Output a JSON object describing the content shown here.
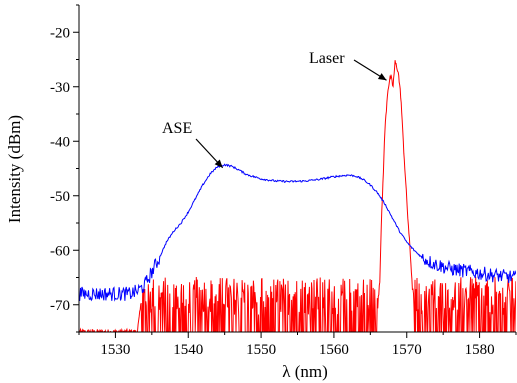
{
  "chart_data": {
    "type": "line",
    "title": "",
    "xlabel": "λ (nm)",
    "ylabel": "Intensity (dBm)",
    "xlim": [
      1525,
      1585
    ],
    "ylim": [
      -75,
      -15
    ],
    "xticks": [
      1530,
      1540,
      1550,
      1560,
      1570,
      1580
    ],
    "yticks": [
      -70,
      -60,
      -50,
      -40,
      -30,
      -20
    ],
    "grid": false,
    "legend": "none",
    "annotations": [
      {
        "text": "ASE",
        "points_to": [
          1545,
          -44.5
        ]
      },
      {
        "text": "Laser",
        "points_to": [
          1567.5,
          -29
        ]
      }
    ],
    "series": [
      {
        "name": "ASE",
        "color": "#0000ff",
        "x": [
          1525,
          1528,
          1530,
          1532,
          1533,
          1534,
          1535,
          1536,
          1537,
          1538,
          1539,
          1540,
          1541,
          1542,
          1543,
          1544,
          1545,
          1546,
          1547,
          1548,
          1550,
          1552,
          1554,
          1556,
          1558,
          1560,
          1562,
          1563,
          1564,
          1565,
          1566,
          1567,
          1568,
          1569,
          1570,
          1571,
          1572,
          1573,
          1574,
          1575,
          1576,
          1578,
          1580,
          1582,
          1585
        ],
        "y": [
          -68,
          -68,
          -68,
          -68,
          -67.5,
          -66.5,
          -64,
          -61.5,
          -58.5,
          -56.5,
          -55,
          -53,
          -50.5,
          -48,
          -46,
          -44.7,
          -44.3,
          -44.6,
          -45.3,
          -46.1,
          -46.9,
          -47.3,
          -47.4,
          -47.3,
          -47,
          -46.5,
          -46.2,
          -46.4,
          -47,
          -48,
          -49.5,
          -51.5,
          -54,
          -56.5,
          -58.5,
          -60,
          -61.2,
          -62,
          -62.6,
          -63,
          -63.4,
          -63.8,
          -64.2,
          -64.6,
          -65
        ]
      },
      {
        "name": "Laser",
        "color": "#ff0000",
        "x": [
          1525,
          1533,
          1533.5,
          1566,
          1566.3,
          1566.6,
          1567,
          1567.4,
          1567.8,
          1568.1,
          1568.4,
          1568.8,
          1569.2,
          1569.6,
          1570.2,
          1570.8,
          1571,
          1585
        ],
        "y": [
          -75,
          -75,
          -70,
          -70,
          -65,
          -52,
          -38,
          -30.5,
          -28,
          -30,
          -25.5,
          -27,
          -32,
          -42,
          -55,
          -67,
          -70,
          -70
        ]
      }
    ]
  }
}
